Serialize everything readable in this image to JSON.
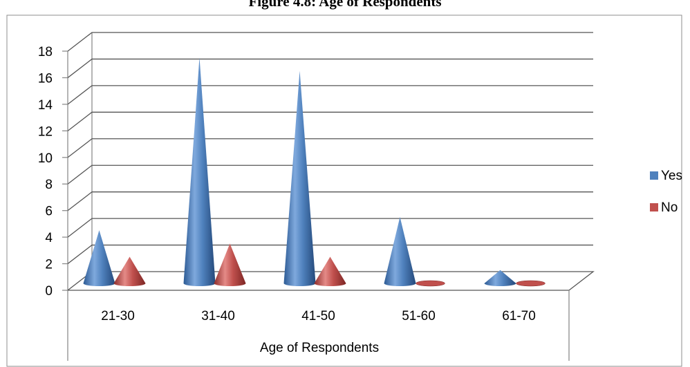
{
  "page": {
    "title": "Figure 4.8: Age of Respondents"
  },
  "chart_data": {
    "type": "bar",
    "style": "3d-cone",
    "title": "",
    "xlabel": "Age of Respondents",
    "ylabel": "",
    "categories": [
      "21-30",
      "31-40",
      "41-50",
      "51-60",
      "61-70"
    ],
    "series": [
      {
        "name": "Yes",
        "values": [
          4,
          17,
          16,
          5,
          1
        ],
        "color": "#4F81BD"
      },
      {
        "name": "No",
        "values": [
          2,
          3,
          2,
          0,
          0
        ],
        "color": "#C0504D"
      }
    ],
    "ylim": [
      0,
      18
    ],
    "yticks": [
      0,
      2,
      4,
      6,
      8,
      10,
      12,
      14,
      16,
      18
    ],
    "grid": true,
    "legend": "right"
  }
}
